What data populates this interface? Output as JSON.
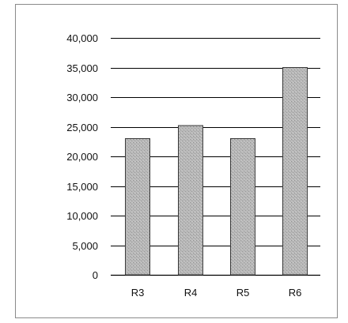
{
  "chart_data": {
    "type": "bar",
    "categories": [
      "R3",
      "R4",
      "R5",
      "R6"
    ],
    "values": [
      23000,
      25200,
      23000,
      35000
    ],
    "title": "",
    "xlabel": "",
    "ylabel": "",
    "ylim": [
      0,
      40000
    ],
    "yticks": [
      "0",
      "5,000",
      "10,000",
      "15,000",
      "20,000",
      "25,000",
      "30,000",
      "35,000",
      "40,000"
    ],
    "grid": true,
    "legend": "none",
    "colors": {
      "bar_fill": "#b5b5b5",
      "bar_stroke": "#3a3a3a",
      "grid": "#000000"
    }
  }
}
